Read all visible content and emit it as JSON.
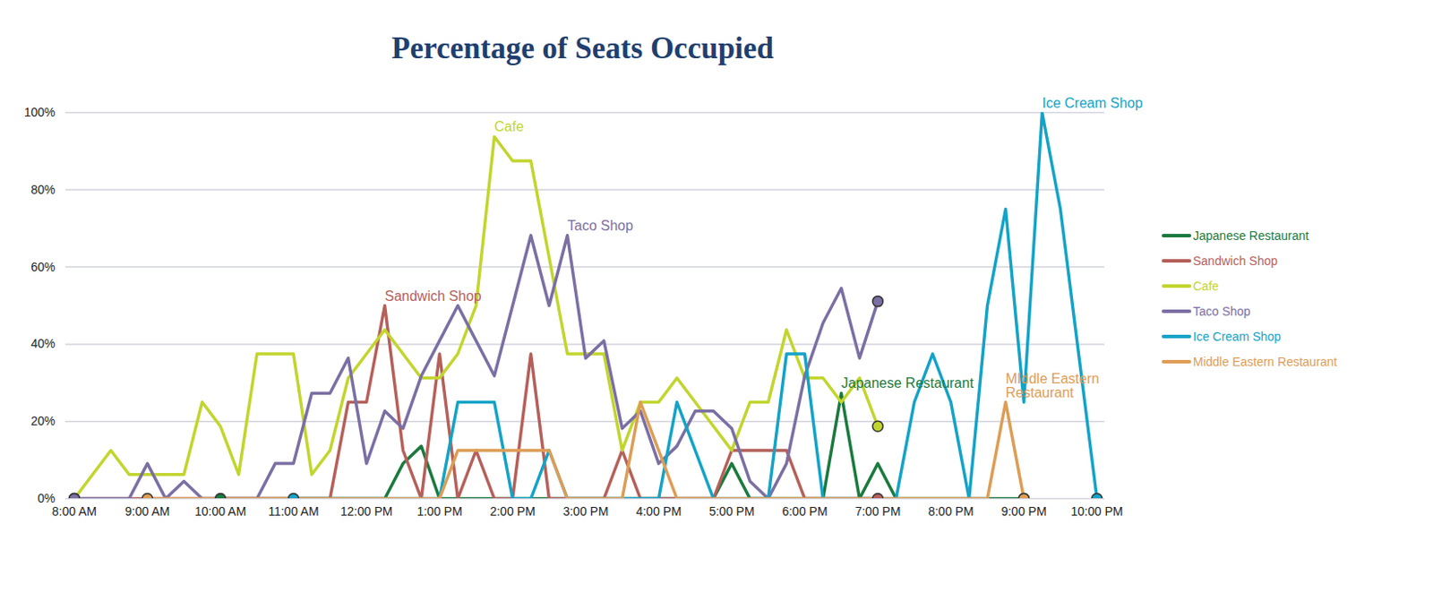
{
  "chart_data": {
    "type": "line",
    "title": "Percentage of Seats Occupied",
    "categories": [
      "8:00 AM",
      null,
      null,
      null,
      "9:00 AM",
      null,
      null,
      null,
      "10:00 AM",
      null,
      null,
      null,
      "11:00 AM",
      null,
      null,
      null,
      "12:00 PM",
      null,
      null,
      null,
      "1:00 PM",
      null,
      null,
      null,
      "2:00 PM",
      null,
      null,
      null,
      "3:00 PM",
      null,
      null,
      null,
      "4:00 PM",
      null,
      null,
      null,
      "5:00 PM",
      null,
      null,
      null,
      "6:00 PM",
      null,
      null,
      null,
      "7:00 PM",
      null,
      null,
      null,
      "8:00 PM",
      null,
      null,
      null,
      "9:00 PM",
      null,
      null,
      null,
      "10:00 PM"
    ],
    "ylim": [
      0,
      100
    ],
    "yticks": [
      {
        "value": 0,
        "label": "0%"
      },
      {
        "value": 20,
        "label": "20%"
      },
      {
        "value": 40,
        "label": "40%"
      },
      {
        "value": 60,
        "label": "60%"
      },
      {
        "value": 80,
        "label": "80%"
      },
      {
        "value": 100,
        "label": "100%"
      }
    ],
    "grid": true,
    "legend": "right",
    "series": [
      {
        "name": "Japanese Restaurant",
        "color": "#1b7a3e",
        "values": [
          null,
          null,
          null,
          null,
          null,
          null,
          null,
          null,
          0,
          0,
          0,
          0,
          0,
          0,
          0,
          0,
          0,
          0,
          9.1,
          13.6,
          0,
          0,
          0,
          0,
          0,
          0,
          0,
          0,
          0,
          0,
          0,
          0,
          0,
          0,
          0,
          0,
          9.1,
          0,
          0,
          0,
          0,
          0,
          27.3,
          0,
          9.1,
          0,
          0,
          0,
          0,
          0,
          0,
          0,
          0,
          null,
          null,
          null,
          null
        ]
      },
      {
        "name": "Sandwich Shop",
        "color": "#b5605a",
        "values": [
          0,
          0,
          0,
          0,
          0,
          0,
          0,
          0,
          0,
          0,
          0,
          0,
          0,
          0,
          0,
          25,
          25,
          50,
          12.5,
          0,
          37.5,
          0,
          12.5,
          0,
          0,
          37.5,
          0,
          0,
          0,
          0,
          12.5,
          0,
          0,
          0,
          0,
          0,
          12.5,
          12.5,
          12.5,
          12.5,
          0,
          0,
          0,
          0,
          0,
          null,
          null,
          null,
          null,
          null,
          null,
          null,
          null,
          null,
          null,
          null,
          null
        ]
      },
      {
        "name": "Cafe",
        "color": "#c2d52e",
        "values": [
          0,
          6.25,
          12.5,
          6.25,
          6.25,
          6.25,
          6.25,
          25,
          18.75,
          6.25,
          37.5,
          37.5,
          37.5,
          6.25,
          12.5,
          31.25,
          37.5,
          43.75,
          37.5,
          31.25,
          31.25,
          37.5,
          50,
          93.75,
          87.5,
          87.5,
          62.5,
          37.5,
          37.5,
          37.5,
          12.5,
          25,
          25,
          31.25,
          25,
          18.75,
          12.5,
          25,
          25,
          43.75,
          31.25,
          31.25,
          25,
          31.25,
          18.75,
          null,
          null,
          null,
          null,
          null,
          null,
          null,
          null,
          null,
          null,
          null,
          null
        ]
      },
      {
        "name": "Taco Shop",
        "color": "#7b6fa3",
        "values": [
          0,
          0,
          0,
          0,
          9.1,
          0,
          4.5,
          0,
          0,
          0,
          0,
          9.1,
          9.1,
          27.3,
          27.3,
          36.4,
          9.1,
          22.7,
          18.2,
          31.8,
          40.9,
          50,
          40.9,
          31.8,
          50,
          68.2,
          50,
          68.2,
          36.4,
          40.9,
          18.2,
          22.7,
          9.1,
          13.6,
          22.7,
          22.7,
          18.2,
          4.5,
          0,
          9.1,
          31.8,
          45.5,
          54.5,
          36.4,
          51.1,
          null,
          null,
          null,
          null,
          null,
          null,
          null,
          null,
          null,
          null,
          null,
          null
        ]
      },
      {
        "name": "Ice Cream Shop",
        "color": "#14a3c7",
        "values": [
          null,
          null,
          null,
          null,
          null,
          null,
          null,
          null,
          null,
          null,
          null,
          null,
          0,
          0,
          0,
          0,
          0,
          0,
          0,
          0,
          0,
          25,
          25,
          25,
          0,
          0,
          12.5,
          0,
          0,
          0,
          0,
          0,
          0,
          25,
          12.5,
          0,
          0,
          0,
          0,
          37.5,
          37.5,
          0,
          0,
          0,
          0,
          0,
          25,
          37.5,
          25,
          0,
          50,
          75,
          25,
          100,
          75,
          37.5,
          0
        ]
      },
      {
        "name": "Middle Eastern Restaurant",
        "color": "#dd9d55",
        "values": [
          null,
          null,
          null,
          null,
          0,
          0,
          0,
          0,
          0,
          0,
          0,
          0,
          0,
          0,
          0,
          0,
          0,
          0,
          0,
          0,
          0,
          12.5,
          12.5,
          12.5,
          12.5,
          12.5,
          12.5,
          0,
          0,
          0,
          0,
          25,
          12.5,
          0,
          0,
          0,
          0,
          0,
          0,
          0,
          0,
          0,
          0,
          0,
          0,
          0,
          0,
          0,
          0,
          0,
          0,
          25,
          0,
          null,
          null,
          null,
          null
        ]
      }
    ],
    "annotations": [
      {
        "text": "Sandwich Shop",
        "series": "Sandwich Shop"
      },
      {
        "text": "Cafe",
        "series": "Cafe"
      },
      {
        "text": "Taco Shop",
        "series": "Taco Shop"
      },
      {
        "text": "Japanese Restaurant",
        "series": "Japanese Restaurant"
      },
      {
        "text": "MIddle Eastern\nRestaurant",
        "series": "Middle Eastern Restaurant"
      },
      {
        "text": "Ice Cream Shop",
        "series": "Ice Cream Shop"
      }
    ]
  }
}
